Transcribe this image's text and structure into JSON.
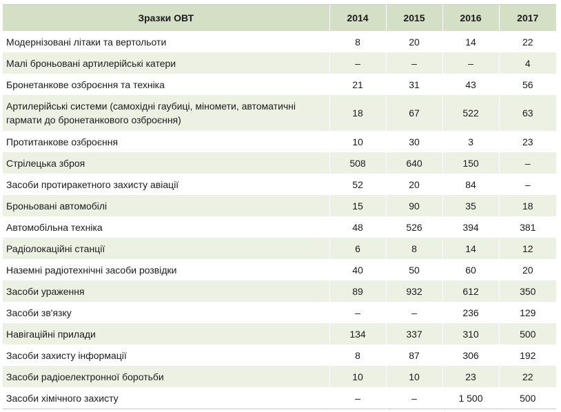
{
  "header": {
    "name": "Зразки ОВТ",
    "years": [
      "2014",
      "2015",
      "2016",
      "2017"
    ]
  },
  "rows": [
    {
      "name": "Модернізовані літаки та вертольоти",
      "values": [
        "8",
        "20",
        "14",
        "22"
      ]
    },
    {
      "name": "Малі броньовані артилерійські катери",
      "values": [
        "–",
        "–",
        "–",
        "4"
      ]
    },
    {
      "name": "Бронетанкове озброєння та техніка",
      "values": [
        "21",
        "31",
        "43",
        "56"
      ]
    },
    {
      "name": "Артилерійські системи (самохідні гаубиці, міномети, автоматичні гармати до бронетанкового озброєння)",
      "values": [
        "18",
        "67",
        "522",
        "63"
      ]
    },
    {
      "name": "Протитанкове озброєння",
      "values": [
        "10",
        "30",
        "3",
        "23"
      ]
    },
    {
      "name": "Стрілецька зброя",
      "values": [
        "508",
        "640",
        "150",
        "–"
      ]
    },
    {
      "name": "Засоби протиракетного захисту авіації",
      "values": [
        "52",
        "20",
        "84",
        "–"
      ]
    },
    {
      "name": "Броньовані автомобілі",
      "values": [
        "15",
        "90",
        "35",
        "18"
      ]
    },
    {
      "name": "Автомобільна техніка",
      "values": [
        "48",
        "526",
        "394",
        "381"
      ]
    },
    {
      "name": "Радіолокаційні станції",
      "values": [
        "6",
        "8",
        "14",
        "12"
      ]
    },
    {
      "name": "Наземні радіотехнічні засоби розвідки",
      "values": [
        "40",
        "50",
        "60",
        "20"
      ]
    },
    {
      "name": "Засоби ураження",
      "values": [
        "89",
        "932",
        "612",
        "350"
      ]
    },
    {
      "name": "Засоби зв'язку",
      "values": [
        "–",
        "–",
        "236",
        "129"
      ]
    },
    {
      "name": "Навігаційні прилади",
      "values": [
        "134",
        "337",
        "310",
        "500"
      ]
    },
    {
      "name": "Засоби захисту інформації",
      "values": [
        "8",
        "87",
        "306",
        "192"
      ]
    },
    {
      "name": "Засоби радіоелектронної боротьби",
      "values": [
        "10",
        "10",
        "23",
        "22"
      ]
    },
    {
      "name": "Засоби хімічного захисту",
      "values": [
        "–",
        "–",
        "1 500",
        "500"
      ]
    }
  ],
  "colors": {
    "header_bg": "#d5dfc6",
    "row_shade": "#ecf1e4"
  }
}
